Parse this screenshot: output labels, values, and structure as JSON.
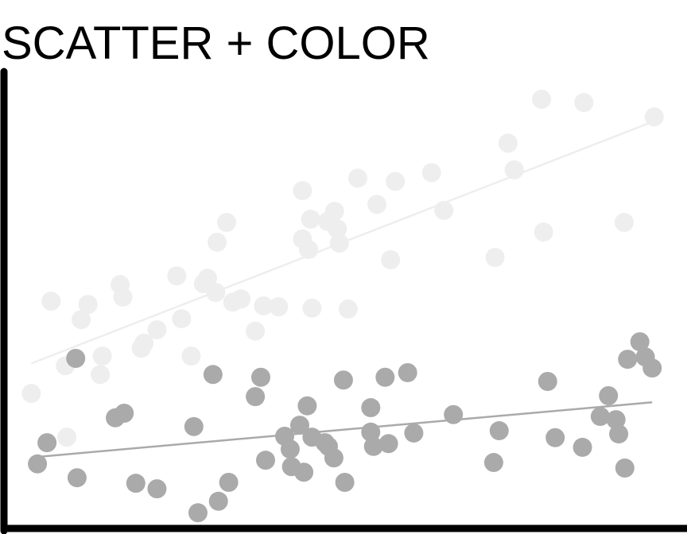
{
  "chart_data": {
    "type": "scatter",
    "title": "SCATTER + COLOR",
    "xlim": [
      0,
      100
    ],
    "ylim": [
      0,
      100
    ],
    "trendline": true,
    "series": [
      {
        "color": "#eeeeee",
        "x": [
          4.0,
          6.9,
          9.0,
          9.2,
          11.3,
          12.3,
          14.1,
          14.4,
          17.0,
          17.4,
          20.1,
          20.5,
          22.4,
          25.3,
          26.0,
          27.4,
          29.2,
          29.8,
          31.0,
          31.2,
          32.6,
          33.5,
          34.7,
          36.8,
          38.0,
          40.2,
          43.7,
          43.7,
          44.6,
          44.9,
          45.1,
          47.4,
          48.4,
          48.8,
          49.1,
          50.4,
          51.8,
          54.6,
          56.6,
          57.3,
          62.6,
          64.4,
          71.9,
          73.8,
          74.7,
          78.7,
          79.0,
          84.9,
          90.8,
          95.2
        ],
        "values": [
          29.3,
          49.3,
          35.3,
          19.8,
          45.3,
          48.6,
          33.4,
          37.4,
          52.9,
          50.2,
          39.1,
          40.2,
          43.1,
          54.8,
          45.5,
          37.4,
          53.1,
          54.3,
          51.2,
          62.1,
          66.4,
          49.1,
          49.8,
          42.8,
          48.3,
          48.1,
          73.3,
          62.8,
          60.5,
          67.1,
          47.8,
          66.6,
          68.8,
          65.0,
          61.9,
          47.6,
          76.0,
          70.3,
          58.3,
          75.3,
          77.2,
          69.0,
          58.8,
          83.6,
          77.8,
          93.1,
          64.3,
          92.4,
          66.4,
          89.3
        ]
      },
      {
        "color": "#aaaaaa",
        "x": [
          4.9,
          6.3,
          10.5,
          10.7,
          16.3,
          17.6,
          19.3,
          22.4,
          27.8,
          28.4,
          30.6,
          31.4,
          32.9,
          36.8,
          37.6,
          38.3,
          41.1,
          41.9,
          42.1,
          43.3,
          43.9,
          44.4,
          45.1,
          47.0,
          47.5,
          48.3,
          49.7,
          49.9,
          53.7,
          53.7,
          54.1,
          55.8,
          56.3,
          59.1,
          60.0,
          65.8,
          71.7,
          72.5,
          79.6,
          80.7,
          84.7,
          87.3,
          88.5,
          89.6,
          90.0,
          90.9,
          91.3,
          93.1,
          93.9,
          94.9
        ],
        "values": [
          14.0,
          18.6,
          36.9,
          11.0,
          24.0,
          25.0,
          9.8,
          8.6,
          22.1,
          3.4,
          33.4,
          5.9,
          10.0,
          28.6,
          32.8,
          14.8,
          20.0,
          17.2,
          13.4,
          22.4,
          12.2,
          26.6,
          19.8,
          18.6,
          17.8,
          15.3,
          32.2,
          10.0,
          26.2,
          20.9,
          17.8,
          32.8,
          18.4,
          33.8,
          20.7,
          24.7,
          14.3,
          21.2,
          31.9,
          19.7,
          17.6,
          24.3,
          28.8,
          23.6,
          20.5,
          13.1,
          36.7,
          40.5,
          37.2,
          34.8
        ]
      }
    ]
  }
}
